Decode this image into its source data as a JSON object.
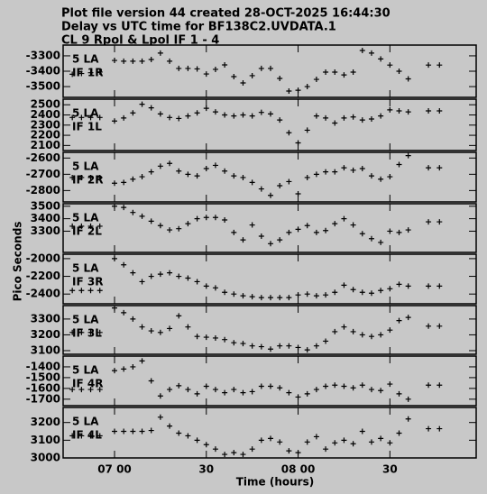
{
  "figure": {
    "title": [
      "Plot file version 44  created 28-OCT-2025 16:44:30",
      "Delay vs UTC time for BF138C2.UVDATA.1",
      "CL 9  Rpol & Lpol  IF 1 - 4"
    ],
    "xlabel": "Time (hours)",
    "ylabel": "Pico Seconds",
    "xlim": [
      6.72,
      8.97
    ],
    "xticks": [
      {
        "value": 7,
        "label": "07 00"
      },
      {
        "value": 7.5,
        "label": "30"
      },
      {
        "value": 8,
        "label": "08 00"
      },
      {
        "value": 8.5,
        "label": "30"
      }
    ]
  },
  "chart_data": [
    {
      "type": "scatter",
      "annotation": [
        "5 LA",
        "IF 1R"
      ],
      "ylim": [
        -3570,
        -3230
      ],
      "yticks": [
        -3300,
        -3400,
        -3500
      ],
      "x": [
        6.77,
        6.82,
        6.87,
        6.92,
        7.0,
        7.05,
        7.1,
        7.15,
        7.2,
        7.25,
        7.3,
        7.35,
        7.4,
        7.45,
        7.5,
        7.55,
        7.6,
        7.65,
        7.7,
        7.75,
        7.8,
        7.85,
        7.9,
        7.95,
        8.0,
        8.05,
        8.1,
        8.15,
        8.2,
        8.25,
        8.3,
        8.35,
        8.4,
        8.45,
        8.5,
        8.55,
        8.6,
        8.71,
        8.77
      ],
      "values": [
        -3420,
        -3415,
        -3410,
        -3405,
        -3330,
        -3335,
        -3335,
        -3335,
        -3324,
        -3282,
        -3335,
        -3382,
        -3382,
        -3385,
        -3418,
        -3388,
        -3359,
        -3435,
        -3476,
        -3429,
        -3382,
        -3382,
        -3447,
        -3529,
        -3524,
        -3500,
        -3453,
        -3406,
        -3406,
        -3424,
        -3406,
        -3265,
        -3282,
        -3320,
        -3360,
        -3400,
        -3450,
        -3360,
        -3360
      ]
    },
    {
      "type": "scatter",
      "annotation": [
        "5 LA",
        "IF 1L"
      ],
      "ylim": [
        2050,
        2555
      ],
      "yticks": [
        2500,
        2400,
        2300,
        2200,
        2100
      ],
      "x": [
        6.77,
        6.82,
        6.87,
        6.92,
        7.0,
        7.05,
        7.1,
        7.15,
        7.2,
        7.25,
        7.3,
        7.35,
        7.4,
        7.45,
        7.5,
        7.55,
        7.6,
        7.65,
        7.7,
        7.75,
        7.8,
        7.85,
        7.9,
        7.95,
        8.0,
        8.05,
        8.1,
        8.15,
        8.2,
        8.25,
        8.3,
        8.35,
        8.4,
        8.45,
        8.5,
        8.55,
        8.6,
        8.71,
        8.77
      ],
      "values": [
        2375,
        2375,
        2375,
        2375,
        2340,
        2370,
        2420,
        2505,
        2470,
        2410,
        2375,
        2365,
        2390,
        2420,
        2465,
        2430,
        2400,
        2390,
        2400,
        2390,
        2425,
        2410,
        2350,
        2225,
        2125,
        2250,
        2390,
        2370,
        2320,
        2370,
        2380,
        2350,
        2360,
        2390,
        2450,
        2440,
        2430,
        2440,
        2440
      ]
    },
    {
      "type": "scatter",
      "annotation": [
        "5 LA",
        "IF 2R"
      ],
      "ylim": [
        -2870,
        -2565
      ],
      "yticks": [
        -2600,
        -2700,
        -2800
      ],
      "x": [
        6.77,
        6.82,
        6.87,
        6.92,
        7.0,
        7.05,
        7.1,
        7.15,
        7.2,
        7.25,
        7.3,
        7.35,
        7.4,
        7.45,
        7.5,
        7.55,
        7.6,
        7.65,
        7.7,
        7.75,
        7.8,
        7.85,
        7.9,
        7.95,
        8.0,
        8.05,
        8.1,
        8.15,
        8.2,
        8.25,
        8.3,
        8.35,
        8.4,
        8.45,
        8.5,
        8.55,
        8.6,
        8.71,
        8.77
      ],
      "values": [
        -2720,
        -2720,
        -2720,
        -2720,
        -2755,
        -2750,
        -2730,
        -2715,
        -2685,
        -2650,
        -2633,
        -2680,
        -2700,
        -2710,
        -2665,
        -2645,
        -2680,
        -2710,
        -2720,
        -2750,
        -2790,
        -2830,
        -2770,
        -2745,
        -2820,
        -2720,
        -2700,
        -2685,
        -2685,
        -2660,
        -2675,
        -2665,
        -2710,
        -2730,
        -2715,
        -2640,
        -2585,
        -2660,
        -2660
      ]
    },
    {
      "type": "scatter",
      "annotation": [
        "5 LA",
        "IF 2L"
      ],
      "ylim": [
        3130,
        3520
      ],
      "yticks": [
        3500,
        3400,
        3300
      ],
      "x": [
        6.77,
        6.82,
        6.87,
        6.92,
        7.0,
        7.05,
        7.1,
        7.15,
        7.2,
        7.25,
        7.3,
        7.35,
        7.4,
        7.45,
        7.5,
        7.55,
        7.6,
        7.65,
        7.7,
        7.75,
        7.8,
        7.85,
        7.9,
        7.95,
        8.0,
        8.05,
        8.1,
        8.15,
        8.2,
        8.25,
        8.3,
        8.35,
        8.4,
        8.45,
        8.5,
        8.55,
        8.6,
        8.71,
        8.77
      ],
      "values": [
        3340,
        3340,
        3340,
        3340,
        3500,
        3490,
        3450,
        3420,
        3380,
        3345,
        3310,
        3320,
        3360,
        3400,
        3410,
        3410,
        3390,
        3290,
        3230,
        3350,
        3260,
        3200,
        3230,
        3290,
        3315,
        3345,
        3290,
        3305,
        3360,
        3400,
        3350,
        3280,
        3240,
        3210,
        3300,
        3290,
        3310,
        3375,
        3375
      ]
    },
    {
      "type": "scatter",
      "annotation": [
        "5 LA",
        "IF 3R"
      ],
      "ylim": [
        -2510,
        -1950
      ],
      "yticks": [
        -2000,
        -2200,
        -2400
      ],
      "x": [
        6.77,
        6.82,
        6.87,
        6.92,
        7.0,
        7.05,
        7.1,
        7.15,
        7.2,
        7.25,
        7.3,
        7.35,
        7.4,
        7.45,
        7.5,
        7.55,
        7.6,
        7.65,
        7.7,
        7.75,
        7.8,
        7.85,
        7.9,
        7.95,
        8.0,
        8.05,
        8.1,
        8.15,
        8.2,
        8.25,
        8.3,
        8.35,
        8.4,
        8.45,
        8.5,
        8.55,
        8.6,
        8.71,
        8.77
      ],
      "values": [
        -2360,
        -2360,
        -2360,
        -2360,
        -2000,
        -2070,
        -2160,
        -2260,
        -2200,
        -2175,
        -2160,
        -2200,
        -2220,
        -2260,
        -2310,
        -2330,
        -2380,
        -2400,
        -2420,
        -2430,
        -2440,
        -2440,
        -2440,
        -2440,
        -2410,
        -2400,
        -2420,
        -2410,
        -2380,
        -2300,
        -2350,
        -2380,
        -2390,
        -2360,
        -2340,
        -2290,
        -2310,
        -2310,
        -2310
      ]
    },
    {
      "type": "scatter",
      "annotation": [
        "5 LA",
        "IF 3L"
      ],
      "ylim": [
        3077,
        3385
      ],
      "yticks": [
        3300,
        3200,
        3100
      ],
      "x": [
        6.77,
        6.82,
        6.87,
        6.92,
        7.0,
        7.05,
        7.1,
        7.15,
        7.2,
        7.25,
        7.3,
        7.35,
        7.4,
        7.45,
        7.5,
        7.55,
        7.6,
        7.65,
        7.7,
        7.75,
        7.8,
        7.85,
        7.9,
        7.95,
        8.0,
        8.05,
        8.1,
        8.15,
        8.2,
        8.25,
        8.3,
        8.35,
        8.4,
        8.45,
        8.5,
        8.55,
        8.6,
        8.71,
        8.77
      ],
      "values": [
        3215,
        3215,
        3215,
        3215,
        3370,
        3340,
        3300,
        3250,
        3225,
        3215,
        3240,
        3320,
        3250,
        3190,
        3185,
        3180,
        3170,
        3150,
        3145,
        3130,
        3125,
        3110,
        3130,
        3130,
        3120,
        3105,
        3130,
        3160,
        3220,
        3250,
        3220,
        3200,
        3190,
        3200,
        3230,
        3290,
        3310,
        3255,
        3255
      ]
    },
    {
      "type": "scatter",
      "annotation": [
        "5 LA",
        "IF 4R"
      ],
      "ylim": [
        -1760,
        -1300
      ],
      "yticks": [
        -1400,
        -1500,
        -1600,
        -1700
      ],
      "x": [
        6.77,
        6.82,
        6.87,
        6.92,
        7.0,
        7.05,
        7.1,
        7.15,
        7.2,
        7.25,
        7.3,
        7.35,
        7.4,
        7.45,
        7.5,
        7.55,
        7.6,
        7.65,
        7.7,
        7.75,
        7.8,
        7.85,
        7.9,
        7.95,
        8.0,
        8.05,
        8.1,
        8.15,
        8.2,
        8.25,
        8.3,
        8.35,
        8.4,
        8.45,
        8.5,
        8.55,
        8.6,
        8.71,
        8.77
      ],
      "values": [
        -1610,
        -1610,
        -1610,
        -1610,
        -1435,
        -1420,
        -1400,
        -1345,
        -1530,
        -1670,
        -1610,
        -1575,
        -1610,
        -1650,
        -1580,
        -1610,
        -1640,
        -1610,
        -1640,
        -1630,
        -1580,
        -1580,
        -1595,
        -1640,
        -1680,
        -1650,
        -1610,
        -1580,
        -1570,
        -1580,
        -1595,
        -1570,
        -1610,
        -1620,
        -1560,
        -1650,
        -1700,
        -1570,
        -1570
      ]
    },
    {
      "type": "scatter",
      "annotation": [
        "5 LA",
        "IF 4L"
      ],
      "ylim": [
        3000,
        3285
      ],
      "yticks": [
        3200,
        3100,
        3000
      ],
      "x": [
        6.77,
        6.82,
        6.87,
        6.92,
        7.0,
        7.05,
        7.1,
        7.15,
        7.2,
        7.25,
        7.3,
        7.35,
        7.4,
        7.45,
        7.5,
        7.55,
        7.6,
        7.65,
        7.7,
        7.75,
        7.8,
        7.85,
        7.9,
        7.95,
        8.0,
        8.05,
        8.1,
        8.15,
        8.2,
        8.25,
        8.3,
        8.35,
        8.4,
        8.45,
        8.5,
        8.55,
        8.6,
        8.71,
        8.77
      ],
      "values": [
        3125,
        3125,
        3125,
        3125,
        3150,
        3150,
        3150,
        3150,
        3155,
        3230,
        3180,
        3140,
        3125,
        3100,
        3075,
        3050,
        3020,
        3030,
        3020,
        3050,
        3100,
        3110,
        3090,
        3040,
        3030,
        3090,
        3120,
        3050,
        3085,
        3100,
        3080,
        3150,
        3090,
        3110,
        3085,
        3140,
        3220,
        3165,
        3165
      ]
    }
  ]
}
